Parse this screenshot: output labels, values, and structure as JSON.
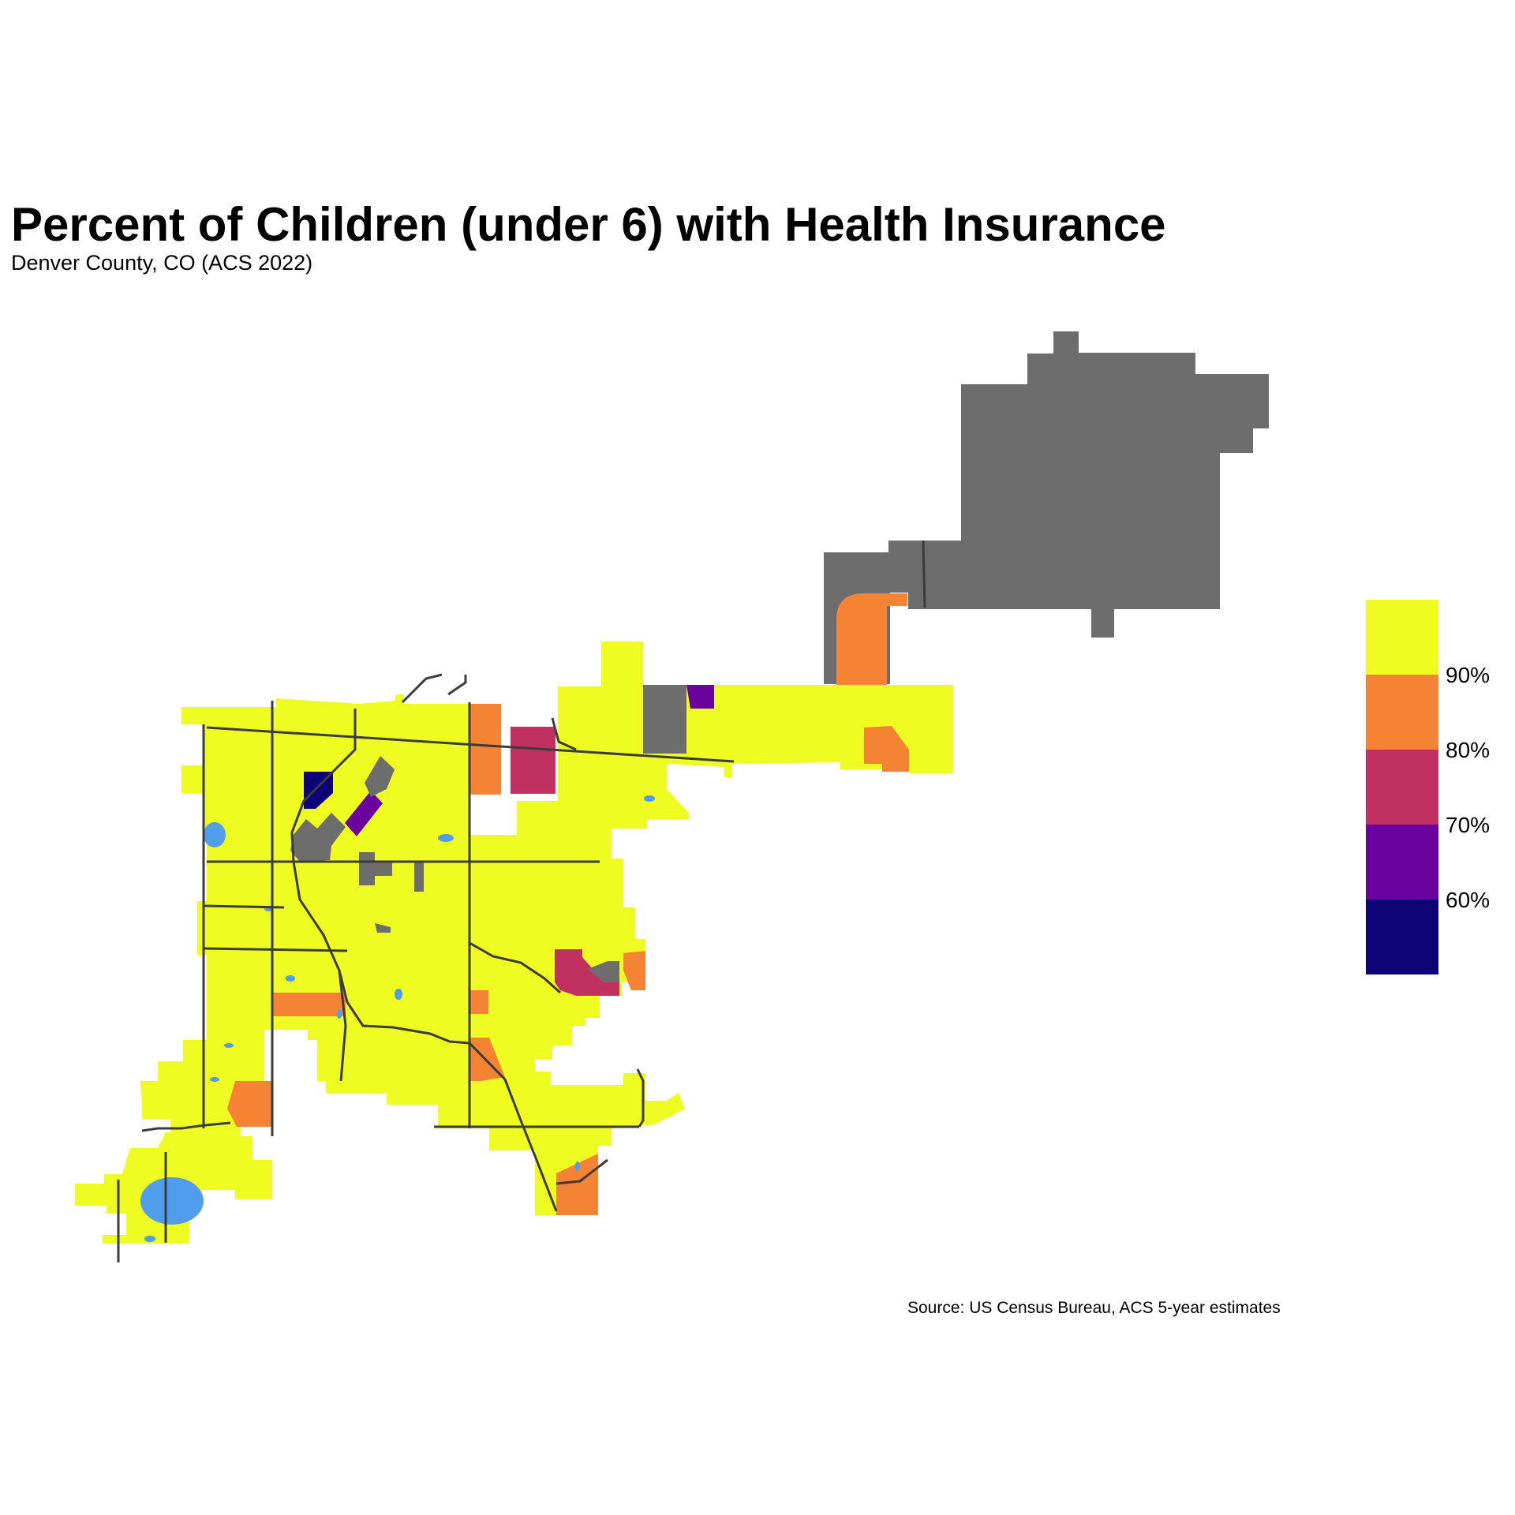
{
  "title": "Percent of Children (under 6) with Health Insurance",
  "subtitle": "Denver County, CO (ACS 2022)",
  "caption": "Source: US Census Bureau, ACS 5-year estimates",
  "colors": {
    "missing": "#6d6d6d",
    "water": "#4f9deb",
    "roads": "#3c3c3c",
    "bin_90_plus": "#eefc22",
    "bin_80_90": "#f48334",
    "bin_70_80": "#c03061",
    "bin_60_70": "#6a029e",
    "bin_below_60": "#0d0377"
  },
  "legend": {
    "ticks": [
      "90%",
      "80%",
      "70%",
      "60%"
    ],
    "bins": [
      {
        "range": "≥90%",
        "color": "#eefc22"
      },
      {
        "range": "80–90%",
        "color": "#f48334"
      },
      {
        "range": "70–80%",
        "color": "#c03061"
      },
      {
        "range": "60–70%",
        "color": "#6a029e"
      },
      {
        "range": "<60%",
        "color": "#0d0377"
      }
    ]
  }
}
